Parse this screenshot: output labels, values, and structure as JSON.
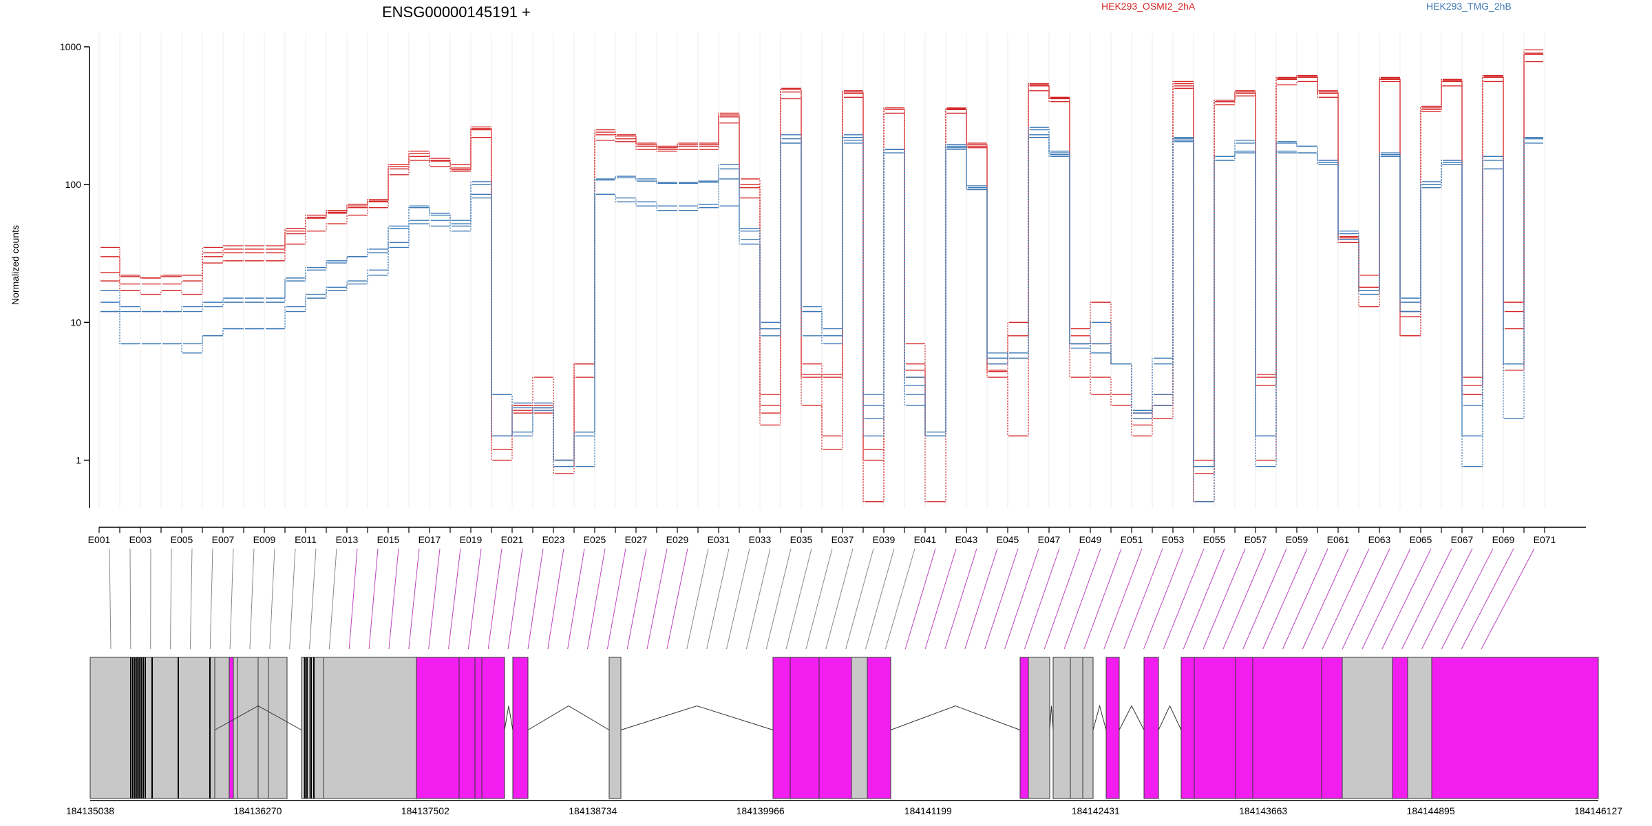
{
  "chart_data": {
    "type": "line",
    "title": "ENSG00000145191 +",
    "ylabel": "Normalized counts",
    "yscale": "log",
    "ylim": [
      0.45,
      1000
    ],
    "yticks": [
      "1000",
      "100",
      "10",
      "1"
    ],
    "xtick_labels": [
      "E001",
      "E003",
      "E005",
      "E007",
      "E009",
      "E011",
      "E013",
      "E015",
      "E017",
      "E019",
      "E021",
      "E023",
      "E025",
      "E027",
      "E029",
      "E031",
      "E033",
      "E035",
      "E037",
      "E039",
      "E041",
      "E043",
      "E045",
      "E047",
      "E049",
      "E051",
      "E053",
      "E055",
      "E057",
      "E059",
      "E061",
      "E063",
      "E065",
      "E067",
      "E069",
      "E071"
    ],
    "legend": {
      "placement": "top"
    },
    "series": [
      {
        "name": "HEK293_OSMI2_2hA",
        "color": "#d62728",
        "values": [
          30,
          21.5,
          21,
          21.5,
          22,
          30,
          32,
          32,
          32,
          44,
          57,
          62,
          68,
          75,
          130,
          168,
          150,
          140,
          250,
          1.5,
          2.5,
          2.5,
          1,
          5,
          230,
          215,
          195,
          185,
          190,
          190,
          310,
          100,
          2.5,
          470,
          4,
          4.2,
          460,
          1,
          360,
          5,
          1.5,
          360,
          195,
          4.5,
          8,
          520,
          420,
          8,
          7,
          5,
          2,
          2.5,
          520,
          0.8,
          400,
          460,
          4,
          580,
          600,
          460,
          40,
          18,
          580,
          12,
          350,
          560,
          3,
          600,
          12,
          880
        ]
      },
      {
        "name": "HEK293_OSMI2_2hA",
        "color": "#d62728",
        "values": [
          23,
          22,
          21,
          22,
          22,
          35,
          36,
          36,
          36,
          48,
          60,
          65,
          72,
          78,
          140,
          175,
          155,
          128,
          262,
          1.2,
          2.5,
          2.2,
          1,
          5,
          250,
          230,
          200,
          190,
          200,
          200,
          330,
          110,
          3,
          500,
          5,
          4,
          480,
          1.2,
          350,
          7,
          1.5,
          350,
          200,
          5,
          10,
          540,
          430,
          9,
          14,
          5,
          2.2,
          3,
          560,
          1,
          410,
          480,
          4.2,
          600,
          620,
          480,
          42,
          22,
          600,
          8,
          370,
          580,
          4,
          620,
          14,
          950
        ]
      },
      {
        "name": "HEK293_OSMI2_2hA",
        "color": "#d62728",
        "values": [
          20,
          17,
          16,
          17,
          16,
          27,
          28,
          28,
          28,
          37,
          46,
          52,
          60,
          68,
          118,
          150,
          135,
          125,
          220,
          1,
          2.2,
          4,
          0.8,
          4,
          210,
          205,
          180,
          175,
          180,
          180,
          280,
          80,
          1.8,
          420,
          2.5,
          1.2,
          430,
          0.5,
          330,
          4,
          1.5,
          330,
          185,
          4,
          1.5,
          480,
          400,
          4,
          3,
          2.5,
          1.5,
          2,
          500,
          0.5,
          380,
          440,
          1,
          530,
          560,
          430,
          38,
          13,
          560,
          8,
          340,
          520,
          3,
          560,
          9,
          780
        ]
      },
      {
        "name": "HEK293_OSMI2_2hA",
        "color": "#d62728",
        "values": [
          35,
          19,
          19,
          19,
          20,
          32,
          34,
          34,
          34,
          46,
          58,
          63,
          70,
          76,
          135,
          160,
          148,
          132,
          255,
          1.5,
          2.3,
          2.4,
          0.9,
          5,
          240,
          225,
          190,
          180,
          195,
          195,
          320,
          95,
          2.2,
          490,
          4.2,
          1.5,
          470,
          0.5,
          360,
          4.5,
          0.5,
          355,
          190,
          4.4,
          1.5,
          530,
          425,
          7,
          4,
          3,
          1.8,
          2.5,
          540,
          0.5,
          400,
          470,
          3.5,
          590,
          610,
          470,
          41,
          17,
          590,
          11,
          360,
          570,
          3.5,
          610,
          4.5,
          900
        ]
      },
      {
        "name": "HEK293_TMG_2hB",
        "color": "#3b78b5",
        "values": [
          12,
          7,
          7,
          7,
          7,
          8,
          9,
          9,
          9,
          12,
          15,
          17,
          19,
          22,
          35,
          52,
          50,
          46,
          80,
          1.5,
          1.6,
          2.3,
          0.9,
          1.5,
          85,
          75,
          70,
          65,
          65,
          68,
          70,
          37,
          9,
          230,
          12,
          8,
          230,
          1.5,
          180,
          3.5,
          1.5,
          180,
          95,
          5.5,
          6,
          220,
          160,
          7,
          6,
          5,
          2,
          2.5,
          210,
          0.9,
          150,
          170,
          1.5,
          170,
          170,
          140,
          40,
          17,
          160,
          12,
          100,
          145,
          1.5,
          150,
          5,
          215
        ]
      },
      {
        "name": "HEK293_TMG_2hB",
        "color": "#3b78b5",
        "values": [
          14,
          13,
          12,
          12,
          13,
          14,
          15,
          15,
          15,
          21,
          25,
          28,
          30,
          34,
          50,
          70,
          62,
          55,
          105,
          1.5,
          2.4,
          2.4,
          1,
          1.6,
          108,
          112,
          106,
          102,
          102,
          104,
          130,
          46,
          8,
          200,
          8,
          7,
          210,
          2.5,
          180,
          2.5,
          1.5,
          195,
          92,
          6,
          5.5,
          260,
          170,
          6.5,
          7,
          5,
          2.3,
          5,
          220,
          0.9,
          160,
          200,
          1.5,
          200,
          190,
          150,
          44,
          16,
          165,
          15,
          100,
          150,
          1.5,
          160,
          5,
          220
        ]
      },
      {
        "name": "HEK293_TMG_2hB",
        "color": "#3b78b5",
        "values": [
          17,
          12,
          12,
          12,
          12,
          13,
          14,
          14,
          14,
          20,
          24,
          27,
          30,
          32,
          48,
          68,
          60,
          52,
          100,
          3,
          2.6,
          2.6,
          1,
          1.6,
          110,
          115,
          110,
          104,
          104,
          106,
          140,
          48,
          10,
          215,
          13,
          9,
          220,
          3,
          180,
          4,
          1.6,
          190,
          98,
          5,
          6,
          250,
          175,
          7,
          10,
          5,
          2.3,
          5.5,
          215,
          0.9,
          160,
          210,
          1.5,
          205,
          190,
          150,
          46,
          17,
          170,
          14,
          105,
          150,
          2.5,
          160,
          2,
          220
        ]
      },
      {
        "name": "HEK293_TMG_2hB",
        "color": "#3b78b5",
        "values": [
          12,
          7,
          7,
          7,
          6,
          8,
          9,
          9,
          9,
          13,
          16,
          18,
          20,
          24,
          38,
          55,
          55,
          50,
          85,
          3,
          1.5,
          2.4,
          0.9,
          0.9,
          85,
          80,
          75,
          70,
          70,
          72,
          110,
          40,
          9,
          200,
          12,
          8,
          200,
          2,
          170,
          3,
          1.5,
          185,
          92,
          5.5,
          6,
          230,
          165,
          7,
          6,
          5,
          2.2,
          3,
          205,
          0.5,
          150,
          175,
          0.9,
          175,
          170,
          145,
          40,
          17,
          160,
          12,
          95,
          140,
          0.9,
          130,
          5,
          200
        ]
      }
    ],
    "gene_model": {
      "genomic_coordinate_ticks": [
        "184135038",
        "184136270",
        "184137502",
        "184138734",
        "184139966",
        "184141199",
        "184142431",
        "184143663",
        "184144895",
        "184146127"
      ],
      "axis_range": [
        184135038,
        184146127
      ],
      "colors": {
        "normal_exon": "#c8c8c8",
        "highlighted_exon": "#f21ef0",
        "connector_normal": "#888888",
        "connector_highlighted": "#c040c0",
        "intron": "#333333"
      }
    }
  }
}
